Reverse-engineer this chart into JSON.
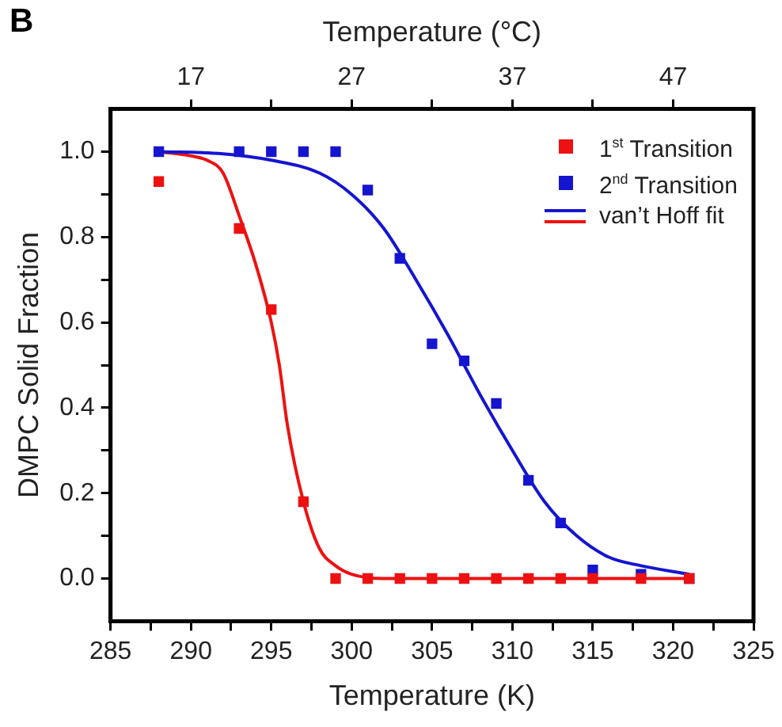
{
  "chart_data": {
    "type": "scatter",
    "title": "B",
    "xlabel": "Temperature (K)",
    "ylabel": "DMPC Solid Fraction",
    "x2label": "Temperature (°C)",
    "xlim": [
      285,
      325
    ],
    "xticks": [
      285,
      {
        "value": 287.5,
        "label": null
      },
      290,
      {
        "value": 292.5,
        "label": null
      },
      295,
      {
        "value": 297.5,
        "label": null
      },
      300,
      {
        "value": 302.5,
        "label": null
      },
      305,
      {
        "value": 307.5,
        "label": null
      },
      310,
      {
        "value": 312.5,
        "label": null
      },
      315,
      {
        "value": 317.5,
        "label": null
      },
      320,
      {
        "value": 322.5,
        "label": null
      },
      325
    ],
    "x2lim": [
      11.85,
      51.85
    ],
    "x2ticks": [
      {
        "value": 16.85,
        "label": "17"
      },
      {
        "value": 21.85,
        "label": null
      },
      {
        "value": 26.85,
        "label": "27"
      },
      {
        "value": 31.85,
        "label": null
      },
      {
        "value": 36.85,
        "label": "37"
      },
      {
        "value": 41.85,
        "label": null
      },
      {
        "value": 46.85,
        "label": "47"
      }
    ],
    "ylim": [
      -0.1,
      1.1
    ],
    "yticks": [
      {
        "value": 0,
        "label": "0.0"
      },
      {
        "value": 0.1,
        "label": null
      },
      {
        "value": 0.2,
        "label": "0.2"
      },
      {
        "value": 0.3,
        "label": null
      },
      {
        "value": 0.4,
        "label": "0.4"
      },
      {
        "value": 0.5,
        "label": null
      },
      {
        "value": 0.6,
        "label": "0.6"
      },
      {
        "value": 0.7,
        "label": null
      },
      {
        "value": 0.8,
        "label": "0.8"
      },
      {
        "value": 0.9,
        "label": null
      },
      {
        "value": 1,
        "label": "1.0"
      }
    ],
    "grid": false,
    "legend": "top right",
    "series": [
      {
        "name": "1$^{st}$ Transition",
        "marker": "square",
        "color": "#ee1111",
        "x": [
          288,
          293,
          295,
          297,
          299,
          301,
          303,
          305,
          307,
          309,
          311,
          313,
          315,
          318,
          321
        ],
        "values": [
          0.93,
          0.82,
          0.63,
          0.18,
          0,
          0,
          0,
          0,
          0,
          0,
          0,
          0,
          0,
          0,
          0
        ]
      },
      {
        "name": "2$^{nd}$ Transition",
        "marker": "square",
        "color": "#1515d0",
        "x": [
          288,
          293,
          295,
          297,
          299,
          301,
          303,
          305,
          307,
          309,
          311,
          313,
          315,
          318,
          321
        ],
        "values": [
          1,
          1,
          1,
          1,
          1,
          0.91,
          0.75,
          0.55,
          0.51,
          0.41,
          0.23,
          0.13,
          0.02,
          0.01,
          0
        ]
      },
      {
        "name": "van’t Hoff fit",
        "type": "line",
        "color": "#1515d0",
        "x": [
          288,
          292,
          295,
          298,
          300,
          302,
          304,
          306,
          307,
          308,
          310,
          312,
          314,
          316,
          318,
          321
        ],
        "values": [
          1,
          0.995,
          0.98,
          0.95,
          0.9,
          0.82,
          0.7,
          0.57,
          0.5,
          0.43,
          0.3,
          0.18,
          0.1,
          0.05,
          0.03,
          0.01
        ]
      },
      {
        "type": "line",
        "color": "#ee1111",
        "x": [
          288,
          290,
          291,
          292,
          293,
          294,
          295,
          295.5,
          296,
          297,
          298,
          299,
          300,
          302,
          305,
          321
        ],
        "values": [
          1,
          0.99,
          0.98,
          0.95,
          0.85,
          0.74,
          0.6,
          0.5,
          0.36,
          0.18,
          0.07,
          0.03,
          0.01,
          0,
          0,
          0
        ]
      }
    ]
  }
}
